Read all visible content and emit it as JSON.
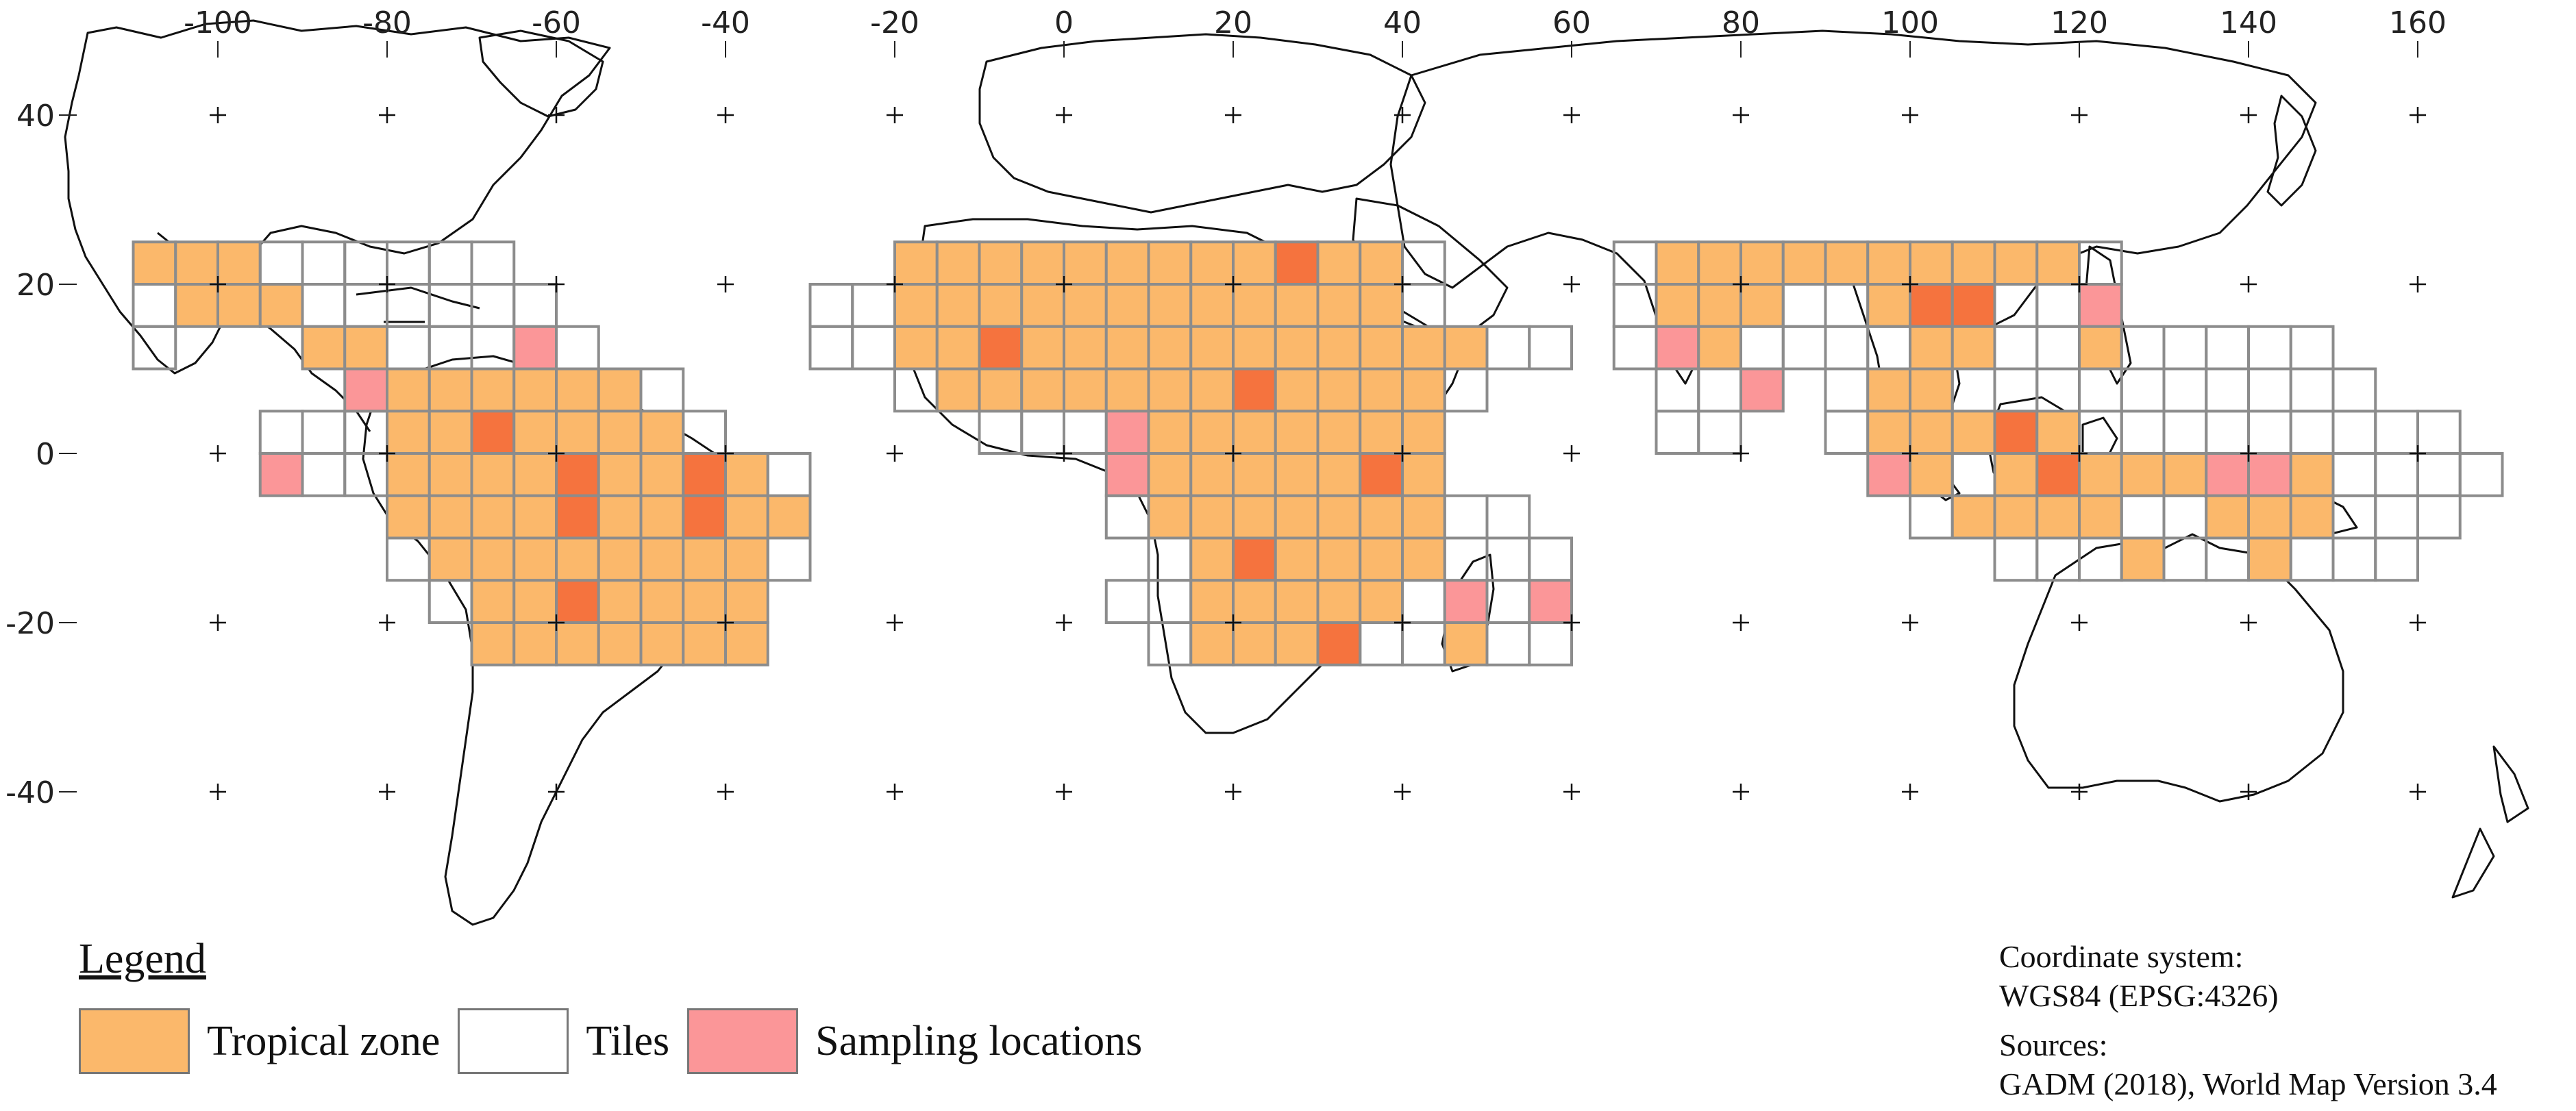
{
  "map": {
    "x_ticks": [
      "-100",
      "-80",
      "-60",
      "-40",
      "-20",
      "0",
      "20",
      "40",
      "60",
      "80",
      "100",
      "120",
      "140",
      "160"
    ],
    "y_ticks": [
      "40",
      "20",
      "0",
      "-20",
      "-40"
    ],
    "colors": {
      "tropical_zone": "#fbb86b",
      "tiles_outline": "#8c8c8c",
      "sampling_light": "#fb9698",
      "sampling_dark": "#f5733e",
      "coastline": "#111111",
      "graticule": "#111111"
    }
  },
  "legend": {
    "title": "Legend",
    "items": [
      {
        "label": "Tropical zone",
        "color": "#fbb86b"
      },
      {
        "label": "Tiles",
        "color": "#ffffff"
      },
      {
        "label": "Sampling locations",
        "color": "#fb9698"
      }
    ]
  },
  "info": {
    "crs_label": "Coordinate system:",
    "crs_value": "WGS84 (EPSG:4326)",
    "sources_label": "Sources:",
    "sources_value": "GADM (2018), World Map Version 3.4"
  }
}
